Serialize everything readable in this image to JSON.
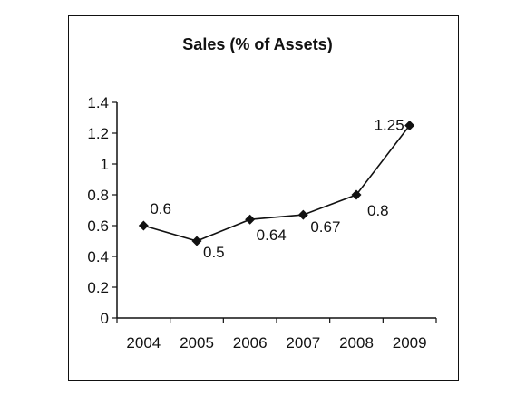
{
  "chart_data": {
    "type": "line",
    "title": "Sales (% of Assets)",
    "xlabel": "",
    "ylabel": "",
    "categories": [
      "2004",
      "2005",
      "2006",
      "2007",
      "2008",
      "2009"
    ],
    "series": [
      {
        "values": [
          0.6,
          0.5,
          0.64,
          0.67,
          0.8,
          1.25
        ]
      }
    ],
    "data_labels": [
      "0.6",
      "0.5",
      "0.64",
      "0.67",
      "0.8",
      "1.25"
    ],
    "ylim": [
      0,
      1.4
    ],
    "yticks": [
      "0",
      "0.2",
      "0.4",
      "0.6",
      "0.8",
      "1",
      "1.2",
      "1.4"
    ],
    "grid": false,
    "legend": "none",
    "marker": "diamond",
    "line_color": "#111111"
  }
}
